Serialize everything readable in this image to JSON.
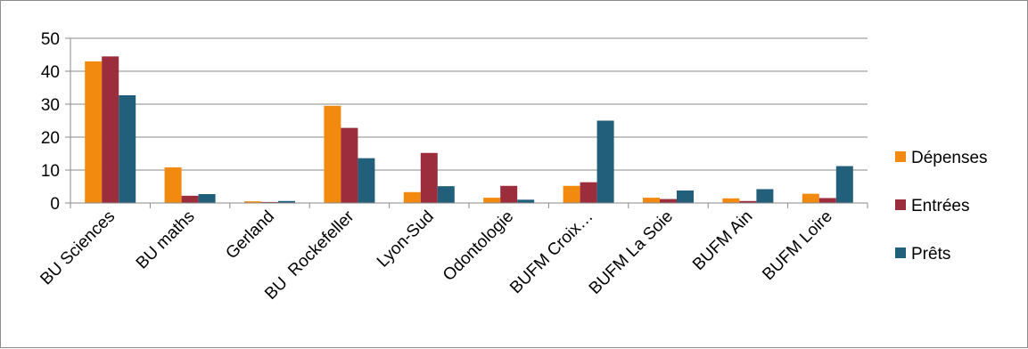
{
  "chart_data": {
    "type": "bar",
    "categories": [
      "BU Sciences",
      "BU maths",
      "Gerland",
      "BU  Rockefeller",
      "Lyon-Sud",
      "Odontologie",
      "BUFM Croix…",
      "BUFM La Soie",
      "BUFM Ain",
      "BUFM Loire"
    ],
    "series": [
      {
        "name": "Dépenses",
        "color": "#f28a0f",
        "values": [
          43,
          10.8,
          0.5,
          29.5,
          3.3,
          1.6,
          5.2,
          1.6,
          1.4,
          2.8
        ]
      },
      {
        "name": "Entrées",
        "color": "#9b2d3d",
        "values": [
          44.5,
          2.2,
          0.3,
          22.8,
          15.2,
          5.2,
          6.3,
          1.2,
          0.6,
          1.5
        ]
      },
      {
        "name": "Prêts",
        "color": "#215f7b",
        "values": [
          32.7,
          2.7,
          0.6,
          13.6,
          5.1,
          1.0,
          25.0,
          3.8,
          4.2,
          11.2
        ]
      }
    ],
    "y_ticks": [
      "0",
      "10",
      "20",
      "30",
      "40",
      "50"
    ],
    "ylim": [
      0,
      50
    ],
    "grid": true,
    "legend_position": "right",
    "title": "",
    "xlabel": "",
    "ylabel": ""
  }
}
